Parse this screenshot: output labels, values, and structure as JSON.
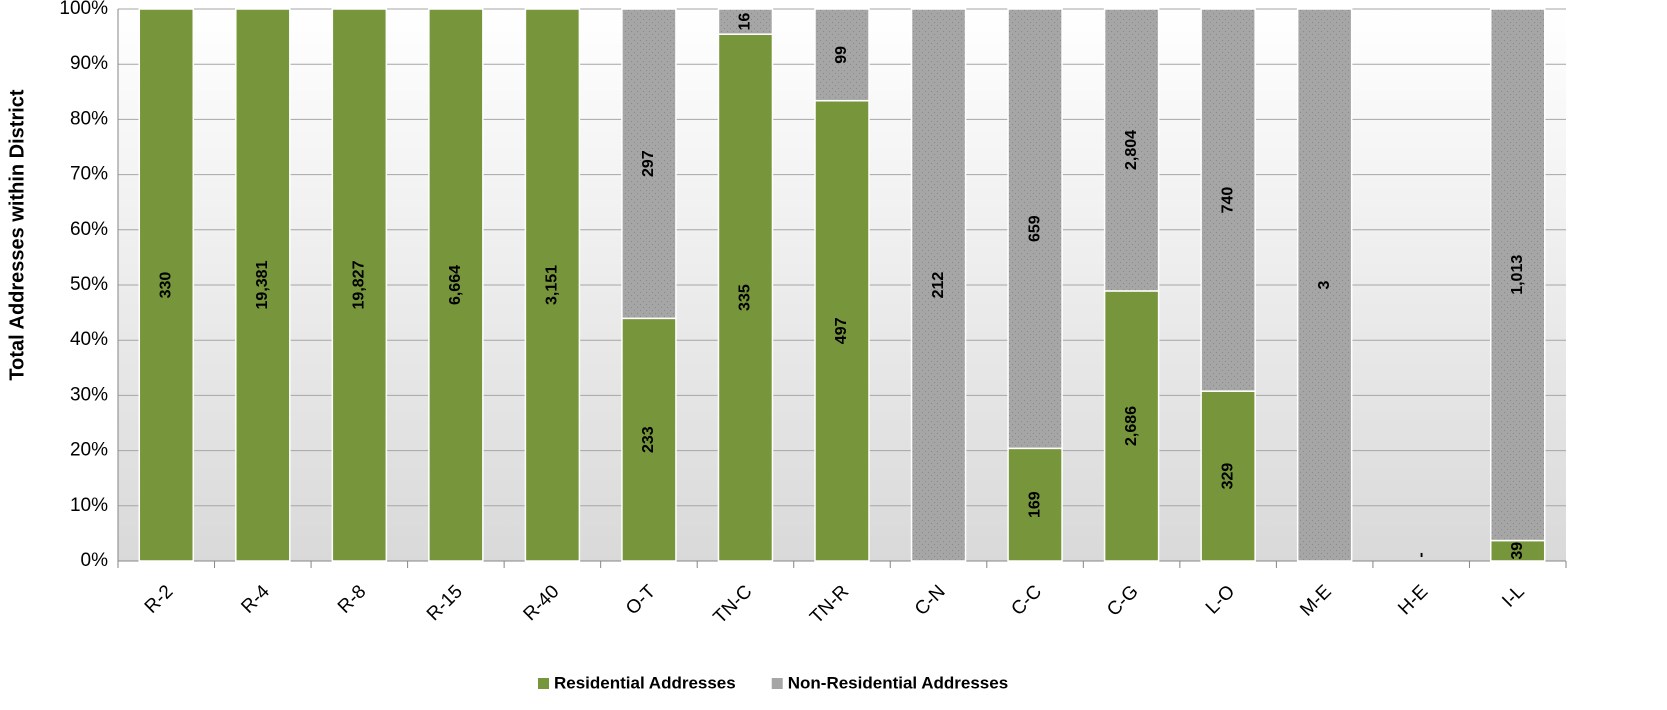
{
  "chart_data": {
    "type": "bar",
    "stacking": "percent",
    "y_label": "Total Addresses within District",
    "categories": [
      "R-2",
      "R-4",
      "R-8",
      "R-15",
      "R-40",
      "O-T",
      "TN-C",
      "TN-R",
      "C-N",
      "C-C",
      "C-G",
      "L-O",
      "M-E",
      "H-E",
      "I-L"
    ],
    "series": [
      {
        "name": "Residential Addresses",
        "color": "#77963b",
        "values": [
          330,
          19381,
          19827,
          6664,
          3151,
          233,
          335,
          497,
          null,
          169,
          2686,
          329,
          null,
          0,
          39
        ],
        "value_labels": [
          "330",
          "19,381",
          "19,827",
          "6,664",
          "3,151",
          "233",
          "335",
          "497",
          null,
          "169",
          "2,686",
          "329",
          null,
          "-",
          "39"
        ]
      },
      {
        "name": "Non-Residential Addresses",
        "color": "#a6a6a6",
        "values": [
          null,
          null,
          null,
          null,
          null,
          297,
          16,
          99,
          212,
          659,
          2804,
          740,
          3,
          null,
          1013
        ],
        "value_labels": [
          null,
          null,
          null,
          null,
          null,
          "297",
          "16",
          "99",
          "212",
          "659",
          "2,804",
          "740",
          "3",
          null,
          "1,013"
        ]
      }
    ],
    "ylim": [
      0,
      100
    ],
    "yticks": [
      {
        "value": 0,
        "label": "0%"
      },
      {
        "value": 10,
        "label": "10%"
      },
      {
        "value": 20,
        "label": "20%"
      },
      {
        "value": 30,
        "label": "30%"
      },
      {
        "value": 40,
        "label": "40%"
      },
      {
        "value": 50,
        "label": "50%"
      },
      {
        "value": 60,
        "label": "60%"
      },
      {
        "value": 70,
        "label": "70%"
      },
      {
        "value": 80,
        "label": "80%"
      },
      {
        "value": 90,
        "label": "90%"
      },
      {
        "value": 100,
        "label": "100%"
      }
    ],
    "grid": true,
    "legend": "bottom"
  }
}
